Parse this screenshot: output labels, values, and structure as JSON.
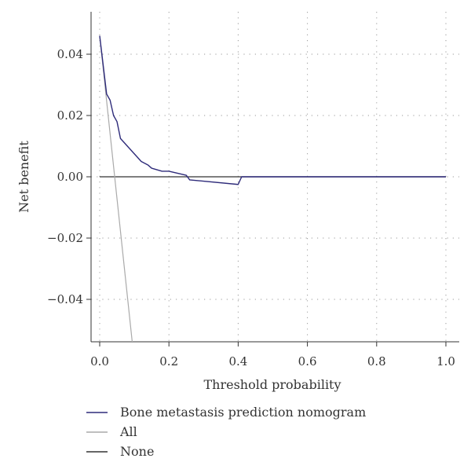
{
  "chart_data": {
    "type": "line",
    "title": "",
    "xlabel": "Threshold probability",
    "ylabel": "Net benefit",
    "xlim": [
      0,
      1.0
    ],
    "ylim": [
      -0.055,
      0.054
    ],
    "x_ticks": [
      0.0,
      0.2,
      0.4,
      0.6,
      0.8,
      1.0
    ],
    "x_tick_labels": [
      "0.0",
      "0.2",
      "0.4",
      "0.6",
      "0.8",
      "1.0"
    ],
    "y_ticks": [
      -0.04,
      -0.02,
      0.0,
      0.02,
      0.04
    ],
    "y_tick_labels": [
      "−0.04",
      "−0.02",
      "0.00",
      "0.02",
      "0.04"
    ],
    "grid": "dotted",
    "legend_position": "bottom-left",
    "series": [
      {
        "name": "Bone metastasis prediction nomogram",
        "color": "#2e2b7a",
        "points": [
          [
            0.0,
            0.046
          ],
          [
            0.02,
            0.027
          ],
          [
            0.03,
            0.025
          ],
          [
            0.04,
            0.02
          ],
          [
            0.05,
            0.018
          ],
          [
            0.06,
            0.0125
          ],
          [
            0.08,
            0.01
          ],
          [
            0.1,
            0.0075
          ],
          [
            0.12,
            0.005
          ],
          [
            0.14,
            0.0038
          ],
          [
            0.15,
            0.0028
          ],
          [
            0.18,
            0.0018
          ],
          [
            0.2,
            0.0018
          ],
          [
            0.25,
            0.0005
          ],
          [
            0.26,
            -0.001
          ],
          [
            0.4,
            -0.0025
          ],
          [
            0.41,
            0.0
          ],
          [
            1.0,
            0.0
          ]
        ]
      },
      {
        "name": "All",
        "color": "#aaaaaa",
        "points": [
          [
            0.0,
            0.046
          ],
          [
            0.095,
            -0.055
          ]
        ]
      },
      {
        "name": "None",
        "color": "#333333",
        "points": [
          [
            0.0,
            0.0
          ],
          [
            1.0,
            0.0
          ]
        ]
      }
    ]
  }
}
